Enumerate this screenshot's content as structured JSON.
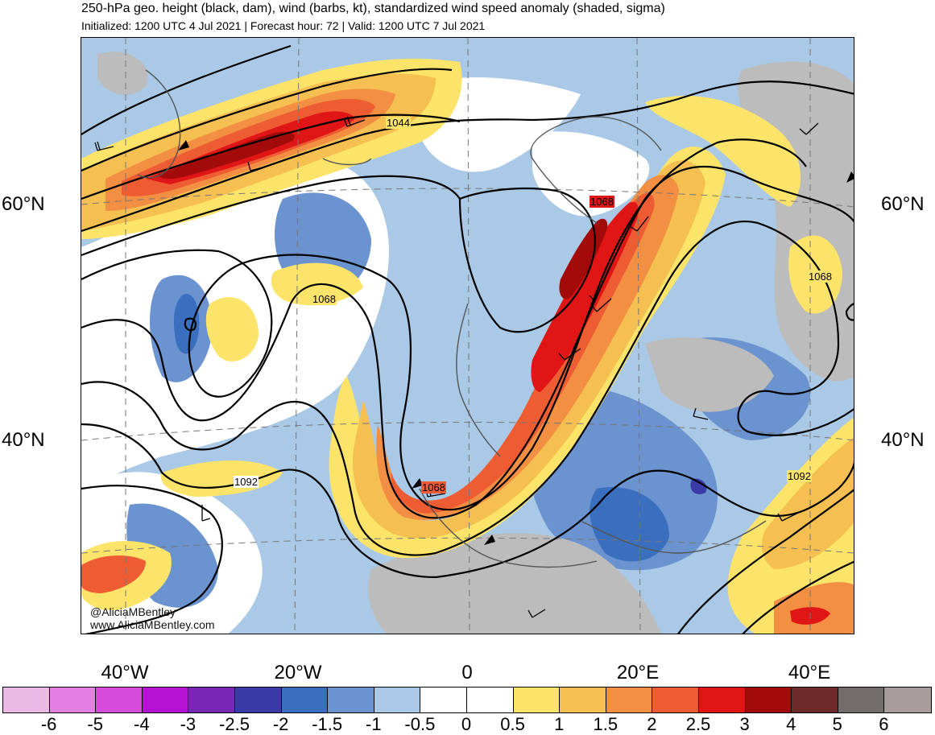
{
  "title": "250-hPa geo. height (black, dam), wind (barbs, kt), standardized wind speed anomaly (shaded, sigma)",
  "subtitle": "Initialized: 1200 UTC 4 Jul 2021 | Forecast hour: 72 | Valid: 1200 UTC 7 Jul 2021",
  "lat_labels": [
    "60°N",
    "40°N"
  ],
  "lon_labels": [
    "40°W",
    "20°W",
    "0",
    "20°E",
    "40°E"
  ],
  "contour_labels": [
    "1044",
    "1068",
    "1068",
    "1068",
    "1068",
    "1092",
    "1092"
  ],
  "credit": [
    "@AliciaMBentley",
    "www.AliciaMBentley.com"
  ],
  "colorbar": {
    "labels": [
      "-6",
      "-5",
      "-4",
      "-3",
      "-2.5",
      "-2",
      "-1.5",
      "-1",
      "-0.5",
      "0",
      "0.5",
      "1",
      "1.5",
      "2",
      "2.5",
      "3",
      "4",
      "5",
      "6"
    ],
    "colors": [
      "#eab9e6",
      "#e480e2",
      "#d64ddb",
      "#b612d4",
      "#7a26b4",
      "#3b3ba8",
      "#3a6fbf",
      "#6b93cf",
      "#a9c9e6",
      "#ffffff",
      "#ffffff",
      "#fce46a",
      "#f5bf52",
      "#f28f42",
      "#ee5c33",
      "#e01515",
      "#a30b0b",
      "#6e2a2a",
      "#736c6c",
      "#a89d9d"
    ]
  }
}
